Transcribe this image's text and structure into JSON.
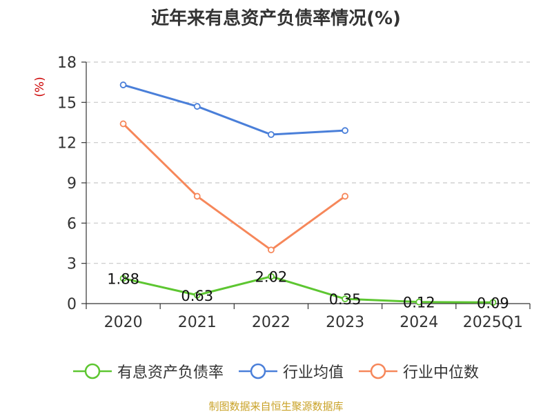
{
  "title": "近年来有息资产负债率情况(%)",
  "source": "制图数据来自恒生聚源数据库",
  "chart_data": {
    "type": "line",
    "title": "近年来有息资产负债率情况(%)",
    "ylabel": "(%)",
    "categories": [
      "2020",
      "2021",
      "2022",
      "2023",
      "2024",
      "2025Q1"
    ],
    "ylim": [
      0,
      18
    ],
    "yticks": [
      0,
      3,
      6,
      9,
      12,
      15,
      18
    ],
    "grid": true,
    "legend_position": "bottom",
    "series": [
      {
        "name": "有息资产负债率",
        "color": "#5dc631",
        "values": [
          1.88,
          0.63,
          2.02,
          0.35,
          0.12,
          0.09
        ],
        "labels": [
          "1.88",
          "0.63",
          "2.02",
          "0.35",
          "0.12",
          "0.09"
        ]
      },
      {
        "name": "行业均值",
        "color": "#4a7fd9",
        "values": [
          16.3,
          14.7,
          12.6,
          12.9,
          null,
          null
        ]
      },
      {
        "name": "行业中位数",
        "color": "#f6875a",
        "values": [
          13.4,
          8.0,
          4.0,
          8.0,
          null,
          null
        ]
      }
    ]
  }
}
